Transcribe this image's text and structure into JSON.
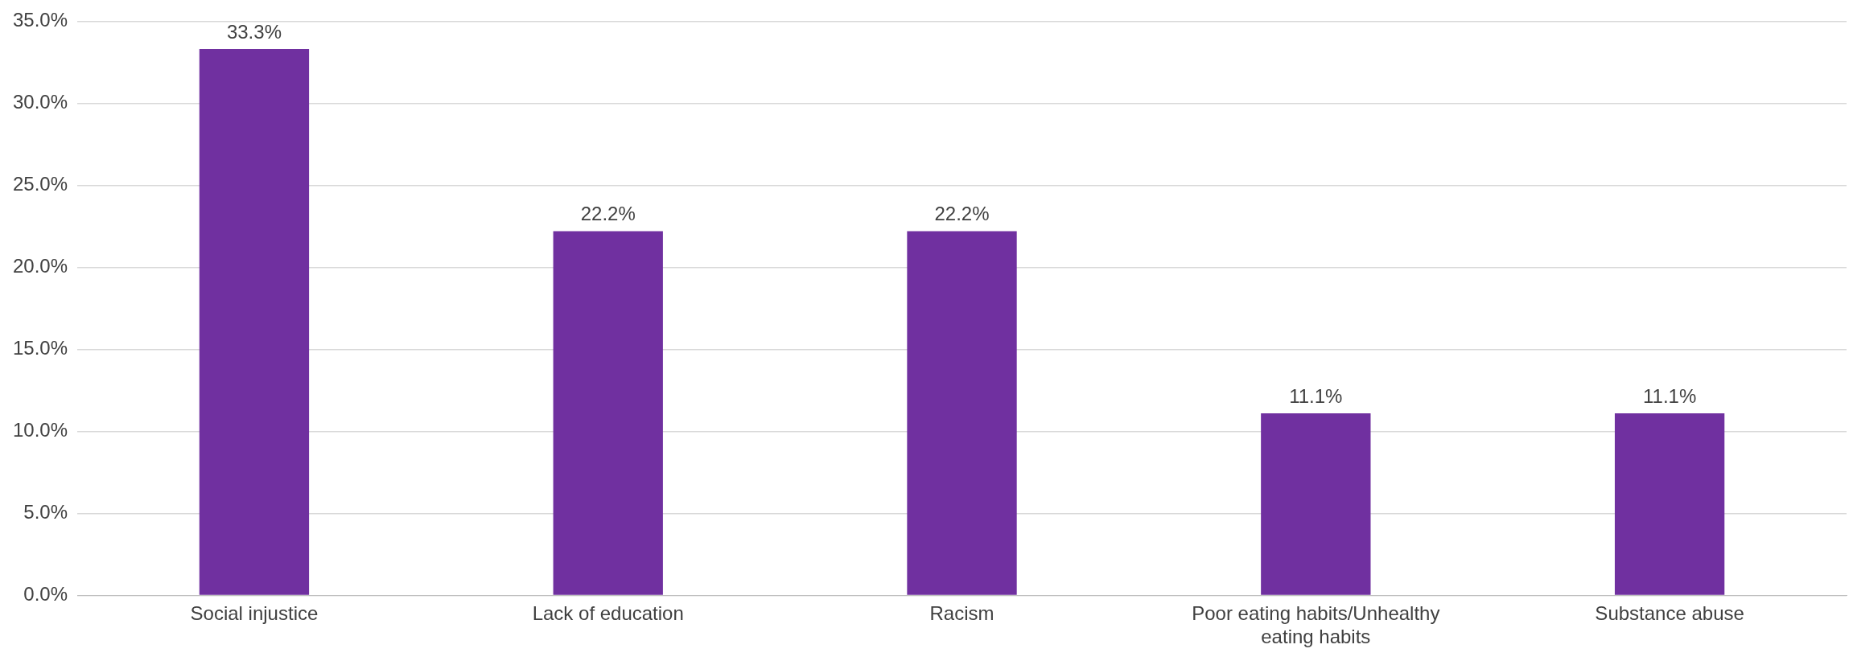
{
  "chart_data": {
    "type": "bar",
    "categories": [
      "Social injustice",
      "Lack of education",
      "Racism",
      "Poor eating habits/Unhealthy eating habits",
      "Substance abuse"
    ],
    "values": [
      33.3,
      22.2,
      22.2,
      11.1,
      11.1
    ],
    "value_labels": [
      "33.3%",
      "22.2%",
      "22.2%",
      "11.1%",
      "11.1%"
    ],
    "color": "#7030a0",
    "ylim": [
      0,
      35
    ],
    "yticks": [
      {
        "value": 0,
        "label": "0.0%"
      },
      {
        "value": 5,
        "label": "5.0%"
      },
      {
        "value": 10,
        "label": "10.0%"
      },
      {
        "value": 15,
        "label": "15.0%"
      },
      {
        "value": 20,
        "label": "20.0%"
      },
      {
        "value": 25,
        "label": "25.0%"
      },
      {
        "value": 30,
        "label": "30.0%"
      },
      {
        "value": 35,
        "label": "35.0%"
      }
    ],
    "grid": "y",
    "legend": false
  }
}
